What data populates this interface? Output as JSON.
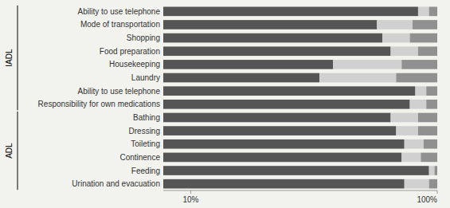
{
  "chart_data": {
    "type": "bar",
    "orientation": "horizontal",
    "stacked": true,
    "categories": [
      "Ability to use telephone",
      "Mode of transportation",
      "Shopping",
      "Food preparation",
      "Housekeeping",
      "Laundry",
      "Ability to use telephone",
      "Responsibility for own medications",
      "Bathing",
      "Dressing",
      "Toileting",
      "Continence",
      "Feeding",
      "Urination and evacuation"
    ],
    "series": [
      {
        "color": "#555555",
        "values": [
          93,
          78,
          80,
          83,
          62,
          57,
          92,
          90,
          83,
          85,
          88,
          87,
          97,
          88
        ]
      },
      {
        "color": "#d0d0d0",
        "values": [
          4,
          13,
          10,
          10,
          25,
          28,
          4,
          6,
          10,
          8,
          7,
          7,
          2,
          9
        ]
      },
      {
        "color": "#909090",
        "values": [
          3,
          9,
          10,
          7,
          13,
          15,
          4,
          4,
          7,
          7,
          5,
          6,
          1,
          3
        ]
      }
    ],
    "xlim": [
      0,
      100
    ],
    "xticks": [
      {
        "value": 10,
        "label": "10%"
      },
      {
        "value": 100,
        "label": "100%"
      }
    ],
    "annotations": [
      {
        "text": "IADL",
        "rows": [
          0,
          7
        ]
      },
      {
        "text": "ADL",
        "rows": [
          8,
          13
        ]
      }
    ]
  }
}
